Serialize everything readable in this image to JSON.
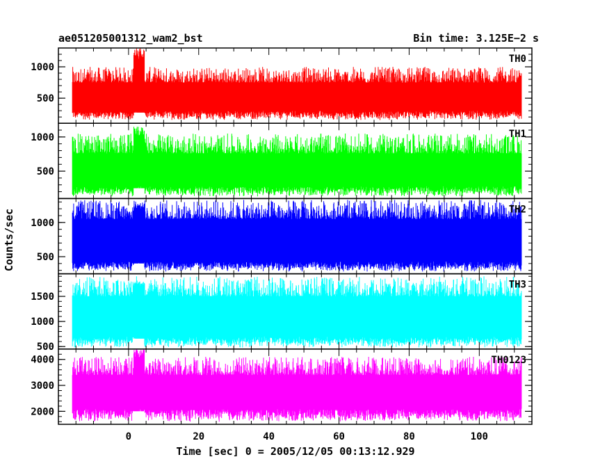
{
  "header": {
    "title": "ae051205001312_wam2_bst",
    "bin_time": "Bin time: 3.125E−2 s"
  },
  "chart_data": {
    "type": "line",
    "xlabel": "Time [sec] 0 = 2005/12/05 00:13:12.929",
    "ylabel": "Counts/sec",
    "xlim": [
      -20,
      115
    ],
    "xticks": [
      0,
      20,
      40,
      60,
      80,
      100
    ],
    "data_x_range": [
      -16,
      112
    ],
    "bin_time_s": 0.03125,
    "panels": [
      {
        "name": "TH0",
        "color": "#ff0000",
        "ylim": [
          100,
          1300
        ],
        "yticks": [
          500,
          1000
        ],
        "band": [
          300,
          750
        ],
        "low": 150,
        "high": 1000,
        "burst_at": 3,
        "burst_peak": 1300
      },
      {
        "name": "TH1",
        "color": "#00ff00",
        "ylim": [
          100,
          1200
        ],
        "yticks": [
          500,
          1000
        ],
        "band": [
          280,
          760
        ],
        "low": 130,
        "high": 1050,
        "burst_at": 3,
        "burst_peak": 1150
      },
      {
        "name": "TH2",
        "color": "#0000ff",
        "ylim": [
          250,
          1350
        ],
        "yticks": [
          500,
          1000
        ],
        "band": [
          430,
          1050
        ],
        "low": 280,
        "high": 1330,
        "burst_at": 3,
        "burst_peak": 1300
      },
      {
        "name": "TH3",
        "color": "#00ffff",
        "ylim": [
          450,
          1950
        ],
        "yticks": [
          500,
          1000,
          1500
        ],
        "band": [
          700,
          1500
        ],
        "low": 480,
        "high": 1900,
        "burst_at": 3,
        "burst_peak": 1800
      },
      {
        "name": "TH0123",
        "color": "#ff00ff",
        "ylim": [
          1500,
          4400
        ],
        "yticks": [
          2000,
          3000,
          4000
        ],
        "band": [
          2100,
          3400
        ],
        "low": 1600,
        "high": 4100,
        "burst_at": 3,
        "burst_peak": 4400
      }
    ]
  }
}
